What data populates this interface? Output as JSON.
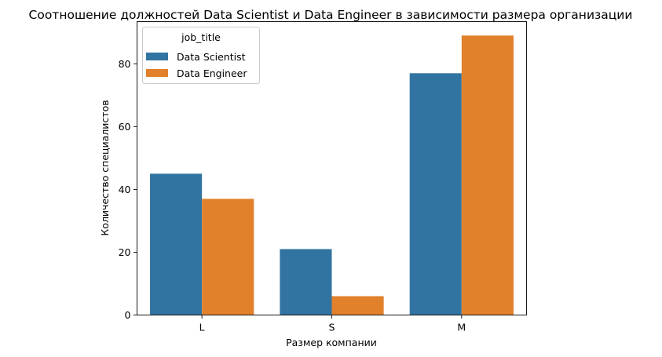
{
  "chart_data": {
    "type": "bar",
    "title": "Соотношение должностей Data Scientist и Data Engineer в зависимости размера организации",
    "xlabel": "Размер компании",
    "ylabel": "Количество специалистов",
    "categories": [
      "L",
      "S",
      "M"
    ],
    "series": [
      {
        "name": "Data Scientist",
        "values": [
          45,
          21,
          77
        ],
        "color": "#3274a1"
      },
      {
        "name": "Data Engineer",
        "values": [
          37,
          6,
          89
        ],
        "color": "#e1812c"
      }
    ],
    "ylim": [
      0,
      93.45
    ],
    "yticks": [
      0,
      20,
      40,
      60,
      80
    ],
    "legend": {
      "title": "job_title",
      "position": "top-left"
    },
    "grid": false
  }
}
